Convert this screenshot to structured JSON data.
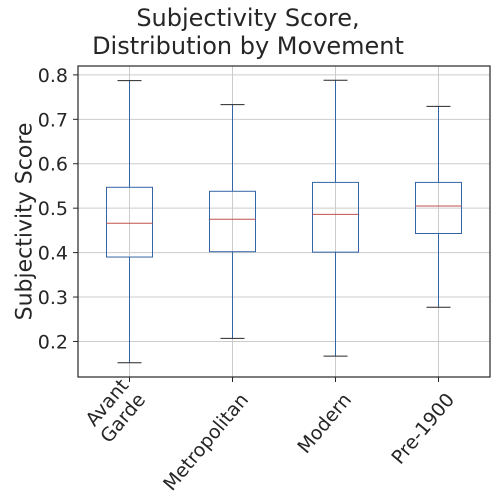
{
  "chart_data": {
    "type": "box",
    "title_lines": [
      "Subjectivity Score,",
      "Distribution by Movement"
    ],
    "xlabel": "",
    "ylabel": "Subjectivity Score",
    "ylim": [
      0.12,
      0.82
    ],
    "yticks": [
      0.2,
      0.3,
      0.4,
      0.5,
      0.6,
      0.7,
      0.8
    ],
    "ytick_labels": [
      "0.2",
      "0.3",
      "0.4",
      "0.5",
      "0.6",
      "0.7",
      "0.8"
    ],
    "grid": true,
    "colors": {
      "box": "#3465a4",
      "median": "#c0504d",
      "whisker": "#3465a4",
      "cap": "#262626",
      "grid": "#cccccc",
      "frame": "#262626"
    },
    "categories": [
      {
        "label_lines": [
          "Avant",
          "Garde"
        ],
        "whisker_low": 0.152,
        "q1": 0.39,
        "median": 0.466,
        "q3": 0.547,
        "whisker_high": 0.787
      },
      {
        "label_lines": [
          "Metropolitan"
        ],
        "whisker_low": 0.207,
        "q1": 0.402,
        "median": 0.475,
        "q3": 0.538,
        "whisker_high": 0.733
      },
      {
        "label_lines": [
          "Modern"
        ],
        "whisker_low": 0.167,
        "q1": 0.401,
        "median": 0.486,
        "q3": 0.558,
        "whisker_high": 0.788
      },
      {
        "label_lines": [
          "Pre-1900"
        ],
        "whisker_low": 0.277,
        "q1": 0.443,
        "median": 0.505,
        "q3": 0.558,
        "whisker_high": 0.729
      }
    ]
  }
}
